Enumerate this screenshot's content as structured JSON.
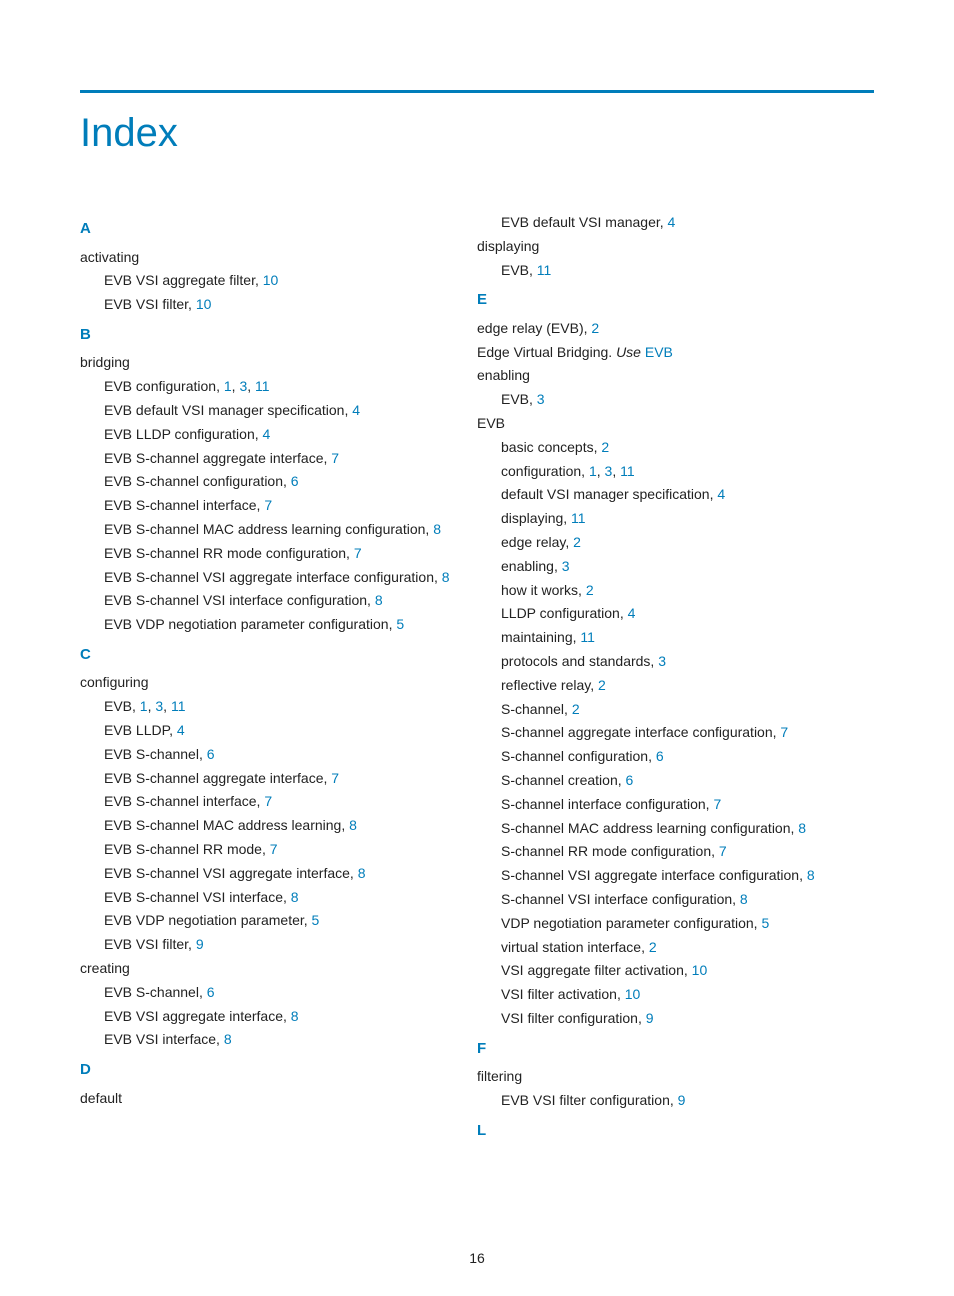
{
  "colors": {
    "accent": "#007dba",
    "text": "#222222",
    "background": "#ffffff"
  },
  "title": "Index",
  "page_number": "16",
  "columns": [
    {
      "items": [
        {
          "type": "letter",
          "text": "A"
        },
        {
          "type": "term",
          "text": "activating"
        },
        {
          "type": "sub",
          "text": "EVB VSI aggregate filter, ",
          "pages": [
            "10"
          ]
        },
        {
          "type": "sub",
          "text": "EVB VSI filter, ",
          "pages": [
            "10"
          ]
        },
        {
          "type": "letter",
          "text": "B"
        },
        {
          "type": "term",
          "text": "bridging"
        },
        {
          "type": "sub",
          "text": "EVB configuration, ",
          "pages": [
            "1",
            "3",
            "11"
          ]
        },
        {
          "type": "sub",
          "text": "EVB default VSI manager specification, ",
          "pages": [
            "4"
          ]
        },
        {
          "type": "sub",
          "text": "EVB LLDP configuration, ",
          "pages": [
            "4"
          ]
        },
        {
          "type": "sub",
          "text": "EVB S-channel aggregate interface, ",
          "pages": [
            "7"
          ]
        },
        {
          "type": "sub",
          "text": "EVB S-channel configuration, ",
          "pages": [
            "6"
          ]
        },
        {
          "type": "sub",
          "text": "EVB S-channel interface, ",
          "pages": [
            "7"
          ]
        },
        {
          "type": "sub",
          "text": "EVB S-channel MAC address learning configuration, ",
          "pages": [
            "8"
          ]
        },
        {
          "type": "sub",
          "text": "EVB S-channel RR mode configuration, ",
          "pages": [
            "7"
          ]
        },
        {
          "type": "sub",
          "text": "EVB S-channel VSI aggregate interface configuration, ",
          "pages": [
            "8"
          ]
        },
        {
          "type": "sub",
          "text": "EVB S-channel VSI interface configuration, ",
          "pages": [
            "8"
          ]
        },
        {
          "type": "sub",
          "text": "EVB VDP negotiation parameter configuration, ",
          "pages": [
            "5"
          ]
        },
        {
          "type": "letter",
          "text": "C"
        },
        {
          "type": "term",
          "text": "configuring"
        },
        {
          "type": "sub",
          "text": "EVB, ",
          "pages": [
            "1",
            "3",
            "11"
          ]
        },
        {
          "type": "sub",
          "text": "EVB LLDP, ",
          "pages": [
            "4"
          ]
        },
        {
          "type": "sub",
          "text": "EVB S-channel, ",
          "pages": [
            "6"
          ]
        },
        {
          "type": "sub",
          "text": "EVB S-channel aggregate interface, ",
          "pages": [
            "7"
          ]
        },
        {
          "type": "sub",
          "text": "EVB S-channel interface, ",
          "pages": [
            "7"
          ]
        },
        {
          "type": "sub",
          "text": "EVB S-channel MAC address learning, ",
          "pages": [
            "8"
          ]
        },
        {
          "type": "sub",
          "text": "EVB S-channel RR mode, ",
          "pages": [
            "7"
          ]
        },
        {
          "type": "sub",
          "text": "EVB S-channel VSI aggregate interface, ",
          "pages": [
            "8"
          ]
        },
        {
          "type": "sub",
          "text": "EVB S-channel VSI interface, ",
          "pages": [
            "8"
          ]
        },
        {
          "type": "sub",
          "text": "EVB VDP negotiation parameter, ",
          "pages": [
            "5"
          ]
        },
        {
          "type": "sub",
          "text": "EVB VSI filter, ",
          "pages": [
            "9"
          ]
        },
        {
          "type": "term",
          "text": "creating"
        },
        {
          "type": "sub",
          "text": "EVB S-channel, ",
          "pages": [
            "6"
          ]
        },
        {
          "type": "sub",
          "text": "EVB VSI aggregate interface, ",
          "pages": [
            "8"
          ]
        },
        {
          "type": "sub",
          "text": "EVB VSI interface, ",
          "pages": [
            "8"
          ]
        },
        {
          "type": "letter",
          "text": "D"
        },
        {
          "type": "term",
          "text": "default"
        }
      ]
    },
    {
      "items": [
        {
          "type": "sub",
          "text": "EVB default VSI manager, ",
          "pages": [
            "4"
          ]
        },
        {
          "type": "term",
          "text": "displaying"
        },
        {
          "type": "sub",
          "text": "EVB, ",
          "pages": [
            "11"
          ]
        },
        {
          "type": "letter",
          "text": "E"
        },
        {
          "type": "term",
          "text": "edge relay (EVB), ",
          "pages": [
            "2"
          ]
        },
        {
          "type": "term",
          "text": "Edge Virtual Bridging. ",
          "italic_tail": "Use ",
          "xref": "EVB"
        },
        {
          "type": "term",
          "text": "enabling"
        },
        {
          "type": "sub",
          "text": "EVB, ",
          "pages": [
            "3"
          ]
        },
        {
          "type": "term",
          "text": "EVB"
        },
        {
          "type": "sub",
          "text": "basic concepts, ",
          "pages": [
            "2"
          ]
        },
        {
          "type": "sub",
          "text": "configuration, ",
          "pages": [
            "1",
            "3",
            "11"
          ]
        },
        {
          "type": "sub",
          "text": "default VSI manager specification, ",
          "pages": [
            "4"
          ]
        },
        {
          "type": "sub",
          "text": "displaying, ",
          "pages": [
            "11"
          ]
        },
        {
          "type": "sub",
          "text": "edge relay, ",
          "pages": [
            "2"
          ]
        },
        {
          "type": "sub",
          "text": "enabling, ",
          "pages": [
            "3"
          ]
        },
        {
          "type": "sub",
          "text": "how it works, ",
          "pages": [
            "2"
          ]
        },
        {
          "type": "sub",
          "text": "LLDP configuration, ",
          "pages": [
            "4"
          ]
        },
        {
          "type": "sub",
          "text": "maintaining, ",
          "pages": [
            "11"
          ]
        },
        {
          "type": "sub",
          "text": "protocols and standards, ",
          "pages": [
            "3"
          ]
        },
        {
          "type": "sub",
          "text": "reflective relay, ",
          "pages": [
            "2"
          ]
        },
        {
          "type": "sub",
          "text": "S-channel, ",
          "pages": [
            "2"
          ]
        },
        {
          "type": "sub",
          "text": "S-channel aggregate interface configuration, ",
          "pages": [
            "7"
          ]
        },
        {
          "type": "sub",
          "text": "S-channel configuration, ",
          "pages": [
            "6"
          ]
        },
        {
          "type": "sub",
          "text": "S-channel creation, ",
          "pages": [
            "6"
          ]
        },
        {
          "type": "sub",
          "text": "S-channel interface configuration, ",
          "pages": [
            "7"
          ]
        },
        {
          "type": "sub",
          "text": "S-channel MAC address learning configuration, ",
          "pages": [
            "8"
          ]
        },
        {
          "type": "sub",
          "text": "S-channel RR mode configuration, ",
          "pages": [
            "7"
          ]
        },
        {
          "type": "sub",
          "text": "S-channel VSI aggregate interface configuration, ",
          "pages": [
            "8"
          ]
        },
        {
          "type": "sub",
          "text": "S-channel VSI interface configuration, ",
          "pages": [
            "8"
          ]
        },
        {
          "type": "sub",
          "text": "VDP negotiation parameter configuration, ",
          "pages": [
            "5"
          ]
        },
        {
          "type": "sub",
          "text": "virtual station interface, ",
          "pages": [
            "2"
          ]
        },
        {
          "type": "sub",
          "text": "VSI aggregate filter activation, ",
          "pages": [
            "10"
          ]
        },
        {
          "type": "sub",
          "text": "VSI filter activation, ",
          "pages": [
            "10"
          ]
        },
        {
          "type": "sub",
          "text": "VSI filter configuration, ",
          "pages": [
            "9"
          ]
        },
        {
          "type": "letter",
          "text": "F"
        },
        {
          "type": "term",
          "text": "filtering"
        },
        {
          "type": "sub",
          "text": "EVB VSI filter configuration, ",
          "pages": [
            "9"
          ]
        },
        {
          "type": "letter",
          "text": "L"
        }
      ]
    }
  ]
}
